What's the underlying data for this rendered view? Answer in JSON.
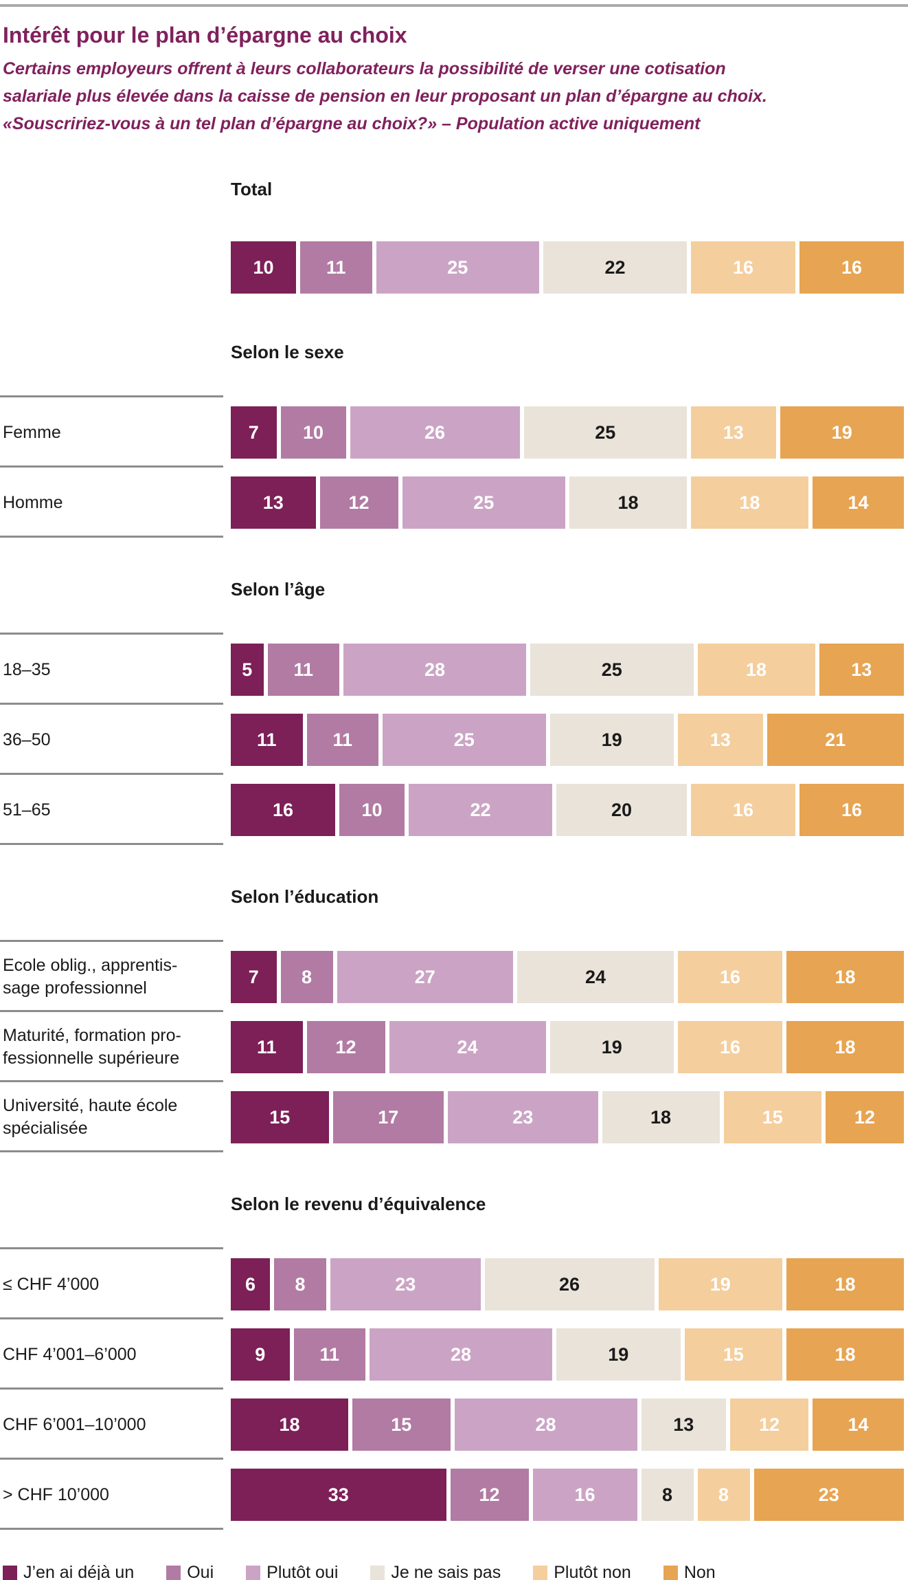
{
  "chart_data": {
    "type": "bar",
    "orientation": "horizontal-stacked",
    "title": "Intérêt pour le plan d’épargne au choix",
    "subtitle": "Certains employeurs offrent à leurs collaborateurs la possibilité de verser une cotisation\nsalariale plus élevée dans la caisse de pension en leur proposant un plan d’épargne au choix.\n«Souscririez-vous à un tel plan d’épargne au choix?» – Population active uniquement",
    "unit": "percent",
    "xlim": [
      0,
      100
    ],
    "grid": false,
    "legend_position": "bottom",
    "legend": [
      "J’en ai déjà un",
      "Oui",
      "Plutôt oui",
      "Je ne sais pas",
      "Plutôt non",
      "Non"
    ],
    "colors": [
      "#7c2057",
      "#b17ba3",
      "#cba4c5",
      "#e9e3d9",
      "#f4ce9d",
      "#e7a452"
    ],
    "value_colors": [
      "#ffffff",
      "#ffffff",
      "#ffffff",
      "#1a1a1a",
      "#ffffff",
      "#ffffff"
    ],
    "accent_color": "#80215d",
    "separator_color": "#8c8c8c",
    "sections": [
      {
        "heading": "Total",
        "separators": false,
        "rows": [
          {
            "label": "",
            "values": [
              10,
              11,
              25,
              22,
              16,
              16
            ]
          }
        ]
      },
      {
        "heading": "Selon le sexe",
        "separators": true,
        "rows": [
          {
            "label": "Femme",
            "values": [
              7,
              10,
              26,
              25,
              13,
              19
            ]
          },
          {
            "label": "Homme",
            "values": [
              13,
              12,
              25,
              18,
              18,
              14
            ]
          }
        ]
      },
      {
        "heading": "Selon l’âge",
        "separators": true,
        "rows": [
          {
            "label": "18–35",
            "values": [
              5,
              11,
              28,
              25,
              18,
              13
            ]
          },
          {
            "label": "36–50",
            "values": [
              11,
              11,
              25,
              19,
              13,
              21
            ]
          },
          {
            "label": "51–65",
            "values": [
              16,
              10,
              22,
              20,
              16,
              16
            ]
          }
        ]
      },
      {
        "heading": "Selon l’éducation",
        "separators": true,
        "rows": [
          {
            "label": "Ecole oblig., apprentis-\nsage professionnel",
            "values": [
              7,
              8,
              27,
              24,
              16,
              18
            ]
          },
          {
            "label": "Maturité, formation pro-\nfessionnelle supérieure",
            "values": [
              11,
              12,
              24,
              19,
              16,
              18
            ]
          },
          {
            "label": "Université, haute école\nspécialisée",
            "values": [
              15,
              17,
              23,
              18,
              15,
              12
            ]
          }
        ]
      },
      {
        "heading": "Selon le revenu d’équivalence",
        "separators": true,
        "rows": [
          {
            "label": "≤ CHF 4’000",
            "values": [
              6,
              8,
              23,
              26,
              19,
              18
            ]
          },
          {
            "label": "CHF 4’001–6’000",
            "values": [
              9,
              11,
              28,
              19,
              15,
              18
            ]
          },
          {
            "label": "CHF 6’001–10’000",
            "values": [
              18,
              15,
              28,
              13,
              12,
              14
            ]
          },
          {
            "label": "> CHF 10’000",
            "values": [
              33,
              12,
              16,
              8,
              8,
              23
            ]
          }
        ]
      }
    ]
  }
}
